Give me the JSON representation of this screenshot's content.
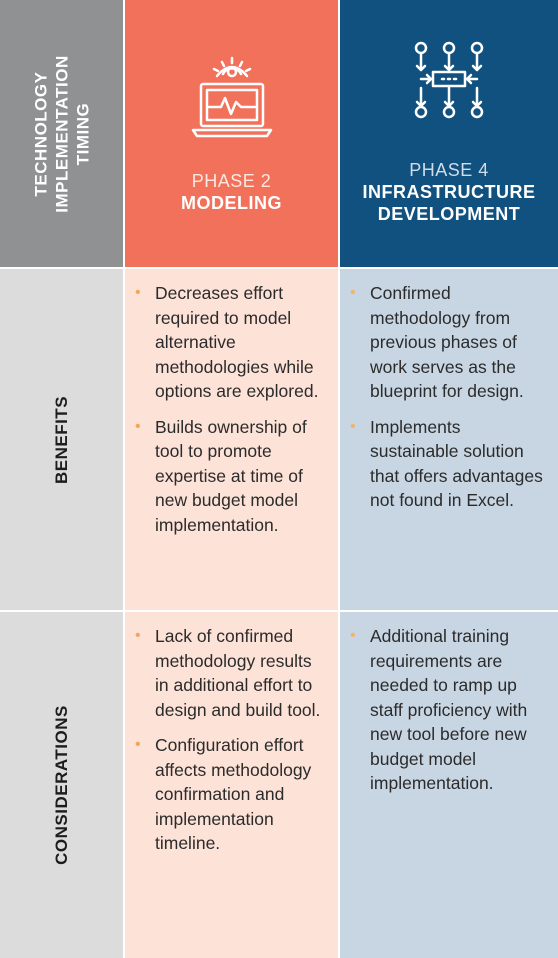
{
  "header": {
    "label_lines": [
      "TECHNOLOGY",
      "IMPLEMENTATION",
      "TIMING"
    ],
    "phase2": {
      "number": "PHASE 2",
      "name": "MODELING",
      "icon": "laptop-gear-icon"
    },
    "phase4": {
      "number": "PHASE 4",
      "name_lines": [
        "INFRASTRUCTURE",
        "DEVELOPMENT"
      ],
      "icon": "network-flow-icon"
    }
  },
  "rows": {
    "benefits": {
      "label": "BENEFITS",
      "phase2": [
        "Decreases effort required to model alternative methodologies while options are explored.",
        "Builds ownership of tool to promote expertise at time of new budget model implementation."
      ],
      "phase4": [
        "Confirmed methodology from previous phases of work serves as the blueprint for design.",
        "Implements sustainable solution that offers advantages not found in Excel."
      ]
    },
    "considerations": {
      "label": "CONSIDERATIONS",
      "phase2": [
        "Lack of confirmed methodology results in additional effort to design and build tool.",
        "Configuration effort affects methodology confirmation and implementation timeline."
      ],
      "phase4": [
        "Additional training requirements are needed to ramp up staff proficiency with new tool before new budget model implementation."
      ]
    }
  },
  "colors": {
    "label_header": "#8f9193",
    "phase2_header": "#f1715a",
    "phase4_header": "#11517f",
    "label_body": "#dcdcdc",
    "phase2_body": "#fde2d8",
    "phase4_body": "#c8d6e4",
    "bullet": "#f4a55a"
  }
}
